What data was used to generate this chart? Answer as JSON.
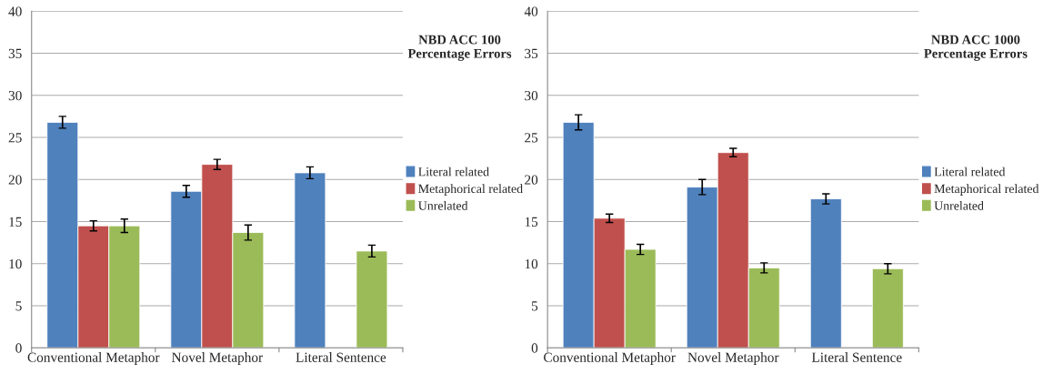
{
  "chart_data": [
    {
      "type": "bar",
      "title": "NBD ACC 100\nPercentage Errors",
      "categories": [
        "Conventional Metaphor",
        "Novel Metaphor",
        "Literal Sentence"
      ],
      "ylim": [
        0,
        40
      ],
      "yticks": [
        0,
        5,
        10,
        15,
        20,
        25,
        30,
        35,
        40
      ],
      "grid": "y",
      "legend": "right",
      "series": [
        {
          "name": "Literal related",
          "color": "#4f81bd",
          "values": [
            26.8,
            18.6,
            20.8
          ],
          "errors": [
            0.7,
            0.7,
            0.7
          ]
        },
        {
          "name": "Metaphorical related",
          "color": "#c0504d",
          "values": [
            14.5,
            21.8,
            null
          ],
          "errors": [
            0.6,
            0.6,
            null
          ]
        },
        {
          "name": "Unrelated",
          "color": "#9bbb59",
          "values": [
            14.5,
            13.7,
            11.5
          ],
          "errors": [
            0.8,
            0.9,
            0.7
          ]
        }
      ]
    },
    {
      "type": "bar",
      "title": "NBD ACC 1000\nPercentage Errors",
      "categories": [
        "Conventional Metaphor",
        "Novel Metaphor",
        "Literal Sentence"
      ],
      "ylim": [
        0,
        40
      ],
      "yticks": [
        0,
        5,
        10,
        15,
        20,
        25,
        30,
        35,
        40
      ],
      "grid": "y",
      "legend": "right",
      "series": [
        {
          "name": "Literal related",
          "color": "#4f81bd",
          "values": [
            26.8,
            19.1,
            17.7
          ],
          "errors": [
            0.9,
            0.9,
            0.6
          ]
        },
        {
          "name": "Metaphorical related",
          "color": "#c0504d",
          "values": [
            15.4,
            23.2,
            null
          ],
          "errors": [
            0.5,
            0.5,
            null
          ]
        },
        {
          "name": "Unrelated",
          "color": "#9bbb59",
          "values": [
            11.7,
            9.5,
            9.4
          ],
          "errors": [
            0.6,
            0.6,
            0.6
          ]
        }
      ]
    }
  ]
}
